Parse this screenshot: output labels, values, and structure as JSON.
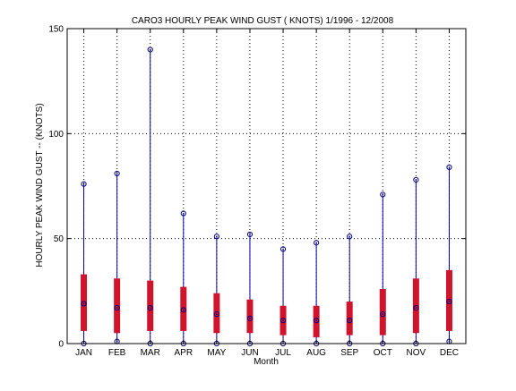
{
  "chart_data": {
    "type": "box",
    "title": "CARO3  HOURLY PEAK WIND GUST ( KNOTS) 1/1996 - 12/2008",
    "xlabel": "Month",
    "ylabel": "HOURLY PEAK WIND GUST -- (KNOTS)",
    "ylim": [
      0,
      150
    ],
    "yticks": [
      0,
      50,
      100,
      150
    ],
    "grid": true,
    "categories": [
      "JAN",
      "FEB",
      "MAR",
      "APR",
      "MAY",
      "JUN",
      "JUL",
      "AUG",
      "SEP",
      "OCT",
      "NOV",
      "DEC"
    ],
    "series": [
      {
        "month": "JAN",
        "min": 0,
        "q1": 6,
        "median": 19,
        "q3": 33,
        "max": 76
      },
      {
        "month": "FEB",
        "min": 1,
        "q1": 5,
        "median": 17,
        "q3": 31,
        "max": 81
      },
      {
        "month": "MAR",
        "min": 0,
        "q1": 6,
        "median": 17,
        "q3": 30,
        "max": 140
      },
      {
        "month": "APR",
        "min": 0,
        "q1": 6,
        "median": 16,
        "q3": 27,
        "max": 62
      },
      {
        "month": "MAY",
        "min": 0,
        "q1": 5,
        "median": 14,
        "q3": 24,
        "max": 51
      },
      {
        "month": "JUN",
        "min": 0,
        "q1": 5,
        "median": 12,
        "q3": 21,
        "max": 52
      },
      {
        "month": "JUL",
        "min": 0,
        "q1": 4,
        "median": 11,
        "q3": 18,
        "max": 45
      },
      {
        "month": "AUG",
        "min": 0,
        "q1": 3,
        "median": 11,
        "q3": 18,
        "max": 48
      },
      {
        "month": "SEP",
        "min": 0,
        "q1": 4,
        "median": 11,
        "q3": 20,
        "max": 51
      },
      {
        "month": "OCT",
        "min": 0,
        "q1": 4,
        "median": 14,
        "q3": 26,
        "max": 71
      },
      {
        "month": "NOV",
        "min": 0,
        "q1": 5,
        "median": 17,
        "q3": 31,
        "max": 78
      },
      {
        "month": "DEC",
        "min": 1,
        "q1": 6,
        "median": 20,
        "q3": 35,
        "max": 84
      }
    ],
    "colors": {
      "box": "#d0142c",
      "whisker": "#0000a8",
      "marker": "#000080",
      "grid": "#000000",
      "axis": "#000000"
    }
  }
}
